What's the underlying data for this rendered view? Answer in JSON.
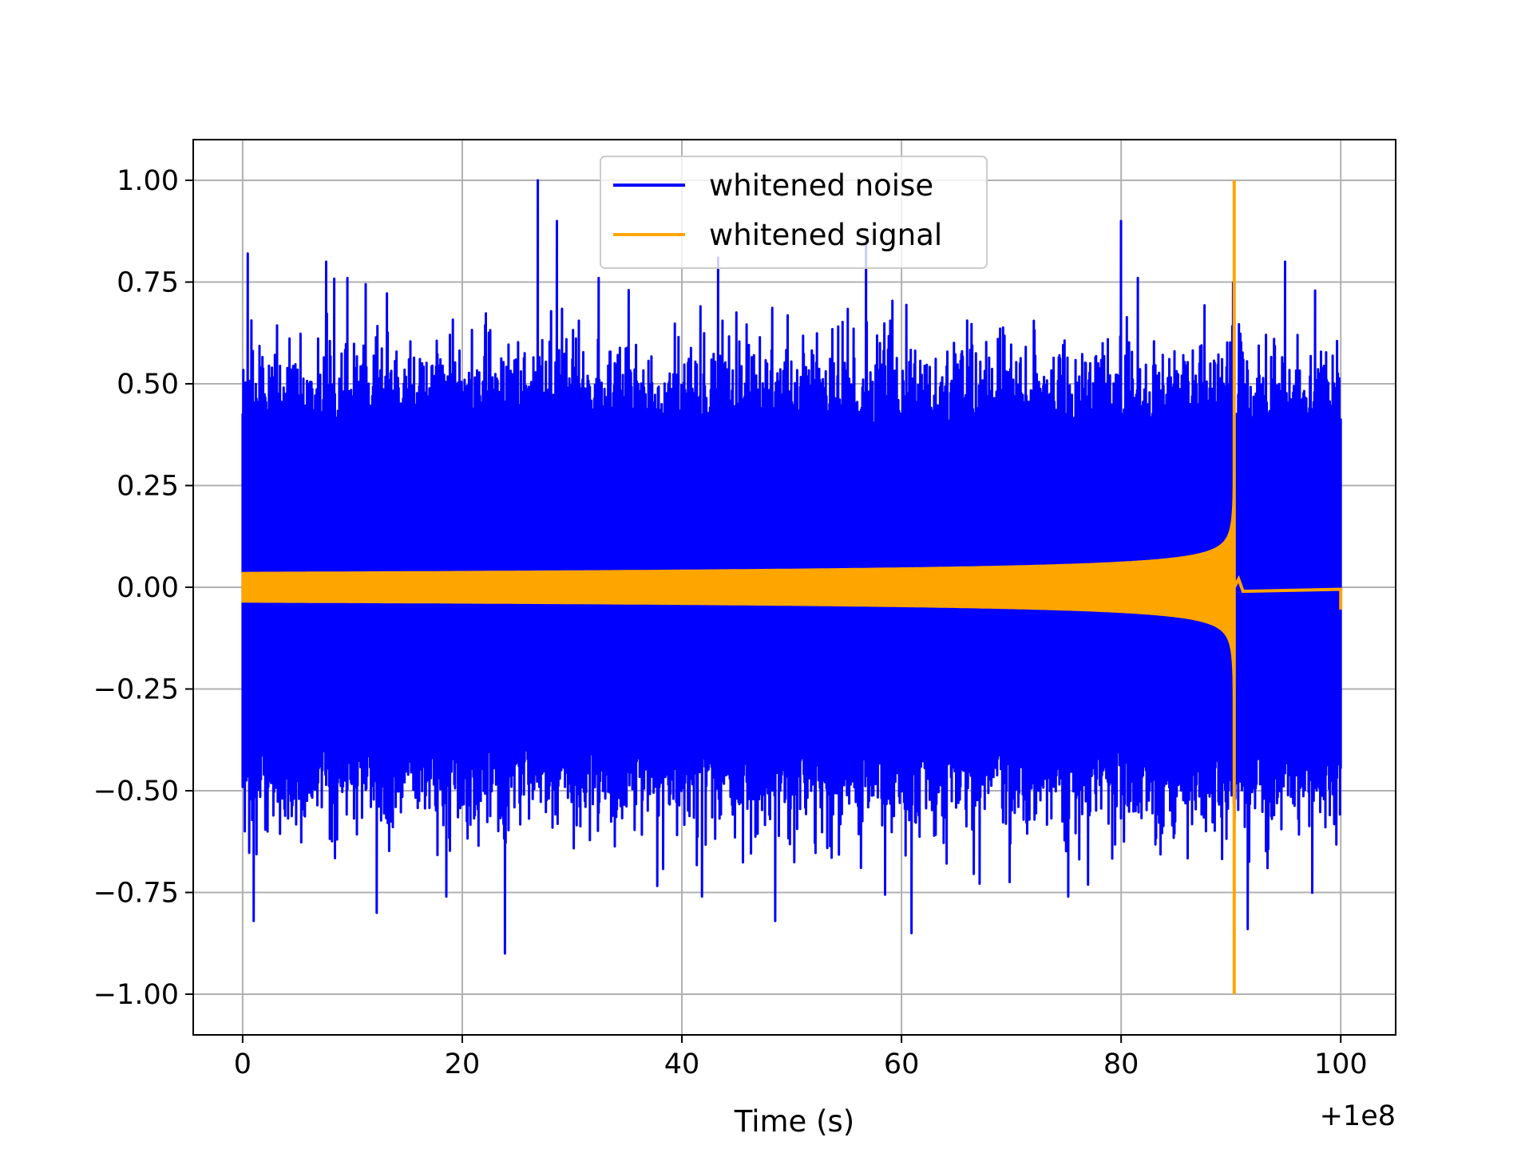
{
  "chart_data": {
    "type": "line",
    "title": "",
    "xlabel": "Time (s)",
    "ylabel": "",
    "x_offset_label": "+1e8",
    "xlim": [
      -4.5,
      105
    ],
    "ylim": [
      -1.1,
      1.1
    ],
    "x_ticks": [
      {
        "value": 0,
        "label": "0"
      },
      {
        "value": 20,
        "label": "20"
      },
      {
        "value": 40,
        "label": "40"
      },
      {
        "value": 60,
        "label": "60"
      },
      {
        "value": 80,
        "label": "80"
      },
      {
        "value": 100,
        "label": "100"
      }
    ],
    "y_ticks": [
      {
        "value": 1.0,
        "label": "1.00"
      },
      {
        "value": 0.75,
        "label": "0.75"
      },
      {
        "value": 0.5,
        "label": "0.50"
      },
      {
        "value": 0.25,
        "label": "0.25"
      },
      {
        "value": 0.0,
        "label": "0.00"
      },
      {
        "value": -0.25,
        "label": "−0.25"
      },
      {
        "value": -0.5,
        "label": "−0.50"
      },
      {
        "value": -0.75,
        "label": "−0.75"
      },
      {
        "value": -1.0,
        "label": "−1.00"
      }
    ],
    "grid": true,
    "legend_position": "upper-center",
    "series": [
      {
        "name": "whitened noise",
        "color": "#0000ff",
        "x_range": [
          0,
          100
        ],
        "typical_envelope": [
          -0.55,
          0.55
        ],
        "peaks": [
          {
            "x": 0.5,
            "y": 0.82
          },
          {
            "x": 7.6,
            "y": 0.8
          },
          {
            "x": 26.9,
            "y": 1.0
          },
          {
            "x": 28.6,
            "y": 0.9
          },
          {
            "x": 43.3,
            "y": 0.81
          },
          {
            "x": 56.8,
            "y": 0.85
          },
          {
            "x": 80.0,
            "y": 0.9
          },
          {
            "x": 94.9,
            "y": 0.8
          },
          {
            "x": 1.0,
            "y": -0.82
          },
          {
            "x": 12.2,
            "y": -0.8
          },
          {
            "x": 23.9,
            "y": -0.9
          },
          {
            "x": 48.5,
            "y": -0.82
          },
          {
            "x": 60.9,
            "y": -0.85
          },
          {
            "x": 91.5,
            "y": -0.84
          }
        ]
      },
      {
        "name": "whitened signal",
        "color": "#ffa500",
        "x_range": [
          0,
          100
        ],
        "merger_time": 90.3,
        "peak_amplitude": 1.0,
        "start_amplitude": 0.035
      }
    ]
  }
}
